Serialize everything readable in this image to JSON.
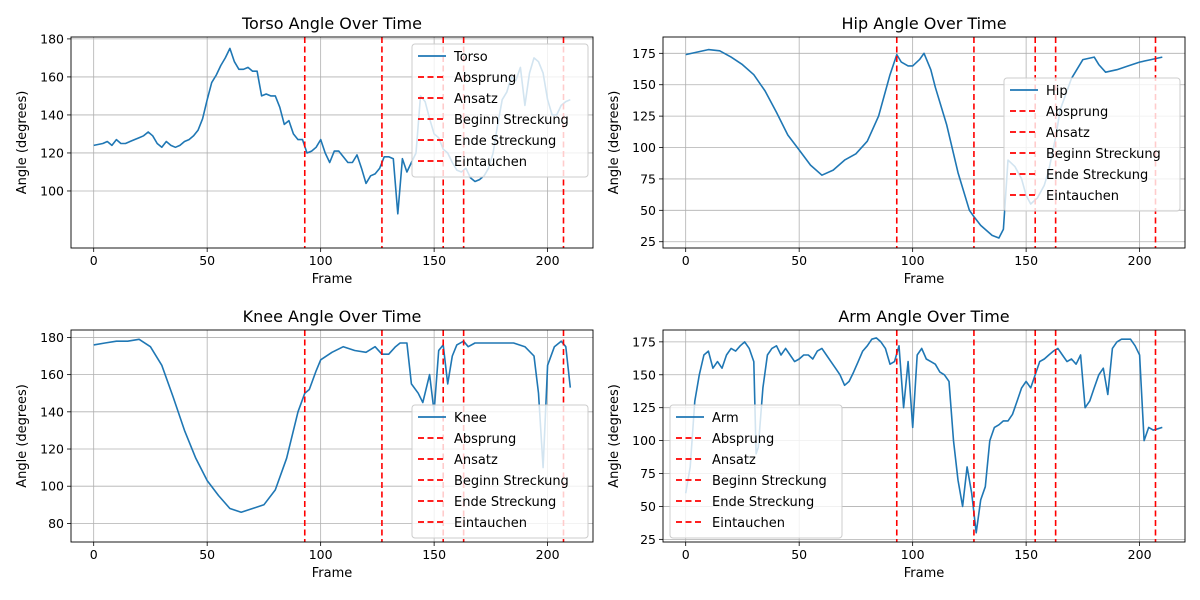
{
  "figure": {
    "background": "#ffffff"
  },
  "colors": {
    "series": "#1f77b4",
    "event": "#ff0000",
    "grid": "#b0b0b0",
    "axis": "#000000"
  },
  "event_names": [
    "Absprung",
    "Ansatz",
    "Beginn Streckung",
    "Ende Streckung",
    "Eintauchen"
  ],
  "event_frames": [
    93,
    127,
    154,
    163,
    207
  ],
  "chart_data": [
    {
      "type": "line",
      "title": "Torso Angle Over Time",
      "xlabel": "Frame",
      "ylabel": "Angle (degrees)",
      "xlim": [
        -10,
        220
      ],
      "ylim": [
        70,
        181
      ],
      "xticks": [
        0,
        50,
        100,
        150,
        200
      ],
      "yticks": [
        100,
        120,
        140,
        160,
        180
      ],
      "grid": true,
      "legend_position": "top-right",
      "series": [
        {
          "name": "Torso",
          "x": [
            0,
            4,
            6,
            8,
            10,
            12,
            14,
            16,
            18,
            20,
            22,
            24,
            26,
            28,
            30,
            32,
            34,
            36,
            38,
            40,
            42,
            44,
            46,
            48,
            50,
            52,
            54,
            56,
            58,
            60,
            62,
            64,
            66,
            68,
            70,
            72,
            74,
            76,
            78,
            80,
            82,
            84,
            86,
            88,
            90,
            92,
            94,
            96,
            98,
            100,
            102,
            104,
            106,
            108,
            110,
            112,
            114,
            116,
            118,
            120,
            122,
            124,
            126,
            128,
            130,
            132,
            134,
            136,
            138,
            140,
            142,
            144,
            146,
            148,
            150,
            152,
            154,
            156,
            158,
            160,
            162,
            164,
            166,
            168,
            170,
            172,
            174,
            176,
            178,
            180,
            182,
            184,
            186,
            188,
            190,
            192,
            194,
            196,
            198,
            200,
            202,
            204,
            206,
            208,
            210
          ],
          "values": [
            124,
            125,
            126,
            124,
            127,
            125,
            125,
            126,
            127,
            128,
            129,
            131,
            129,
            125,
            123,
            126,
            124,
            123,
            124,
            126,
            127,
            129,
            132,
            138,
            148,
            157,
            161,
            166,
            170,
            175,
            168,
            164,
            164,
            165,
            163,
            163,
            150,
            151,
            150,
            150,
            144,
            135,
            137,
            130,
            127,
            127,
            120,
            121,
            123,
            127,
            120,
            115,
            121,
            121,
            118,
            115,
            115,
            119,
            112,
            104,
            108,
            109,
            112,
            118,
            118,
            117,
            88,
            117,
            110,
            115,
            120,
            150,
            147,
            138,
            130,
            128,
            122,
            120,
            115,
            111,
            110,
            112,
            107,
            105,
            106,
            108,
            112,
            120,
            135,
            148,
            152,
            160,
            158,
            165,
            145,
            162,
            170,
            168,
            162,
            148,
            140,
            140,
            145,
            147,
            148
          ]
        }
      ]
    },
    {
      "type": "line",
      "title": "Hip Angle Over Time",
      "xlabel": "Frame",
      "ylabel": "Angle (degrees)",
      "xlim": [
        -10,
        220
      ],
      "ylim": [
        20,
        188
      ],
      "xticks": [
        0,
        50,
        100,
        150,
        200
      ],
      "yticks": [
        25,
        50,
        75,
        100,
        125,
        150,
        175
      ],
      "grid": true,
      "legend_position": "center-right",
      "series": [
        {
          "name": "Hip",
          "x": [
            0,
            5,
            10,
            15,
            20,
            25,
            30,
            35,
            40,
            45,
            50,
            55,
            60,
            65,
            70,
            75,
            80,
            85,
            90,
            93,
            95,
            98,
            100,
            103,
            105,
            108,
            110,
            115,
            120,
            125,
            127,
            130,
            135,
            138,
            140,
            142,
            145,
            148,
            150,
            152,
            155,
            158,
            160,
            163,
            165,
            170,
            175,
            180,
            182,
            185,
            190,
            195,
            200,
            205,
            210
          ],
          "values": [
            174,
            176,
            178,
            177,
            172,
            166,
            158,
            145,
            128,
            110,
            98,
            86,
            78,
            82,
            90,
            95,
            105,
            125,
            158,
            174,
            168,
            165,
            165,
            170,
            175,
            162,
            148,
            118,
            80,
            50,
            45,
            38,
            30,
            28,
            35,
            90,
            85,
            75,
            62,
            55,
            60,
            70,
            82,
            108,
            130,
            155,
            170,
            172,
            166,
            160,
            162,
            165,
            168,
            170,
            172
          ]
        }
      ]
    },
    {
      "type": "line",
      "title": "Knee Angle Over Time",
      "xlabel": "Frame",
      "ylabel": "Angle (degrees)",
      "xlim": [
        -10,
        220
      ],
      "ylim": [
        70,
        184
      ],
      "xticks": [
        0,
        50,
        100,
        150,
        200
      ],
      "yticks": [
        80,
        100,
        120,
        140,
        160,
        180
      ],
      "grid": true,
      "legend_position": "bottom-right",
      "series": [
        {
          "name": "Knee",
          "x": [
            0,
            5,
            10,
            15,
            20,
            25,
            30,
            35,
            40,
            45,
            50,
            55,
            60,
            65,
            70,
            75,
            80,
            85,
            90,
            93,
            95,
            98,
            100,
            105,
            110,
            115,
            120,
            124,
            127,
            130,
            133,
            135,
            138,
            140,
            143,
            145,
            148,
            150,
            152,
            154,
            156,
            158,
            160,
            163,
            165,
            168,
            170,
            175,
            180,
            185,
            190,
            194,
            196,
            198,
            200,
            203,
            206,
            208,
            210
          ],
          "values": [
            176,
            177,
            178,
            178,
            179,
            175,
            165,
            148,
            130,
            115,
            103,
            95,
            88,
            86,
            88,
            90,
            98,
            115,
            140,
            150,
            152,
            162,
            168,
            172,
            175,
            173,
            172,
            175,
            171,
            171,
            175,
            177,
            177,
            155,
            150,
            145,
            160,
            140,
            173,
            176,
            155,
            170,
            176,
            178,
            175,
            177,
            177,
            177,
            177,
            177,
            175,
            170,
            150,
            110,
            165,
            175,
            178,
            175,
            153
          ]
        }
      ]
    },
    {
      "type": "line",
      "title": "Arm Angle Over Time",
      "xlabel": "Frame",
      "ylabel": "Angle (degrees)",
      "xlim": [
        -10,
        220
      ],
      "ylim": [
        23,
        184
      ],
      "xticks": [
        0,
        50,
        100,
        150,
        200
      ],
      "yticks": [
        25,
        50,
        75,
        100,
        125,
        150,
        175
      ],
      "grid": true,
      "legend_position": "bottom-left",
      "series": [
        {
          "name": "Arm",
          "x": [
            0,
            2,
            4,
            6,
            8,
            10,
            12,
            14,
            16,
            18,
            20,
            22,
            24,
            26,
            28,
            30,
            31,
            32,
            34,
            36,
            38,
            40,
            42,
            44,
            46,
            48,
            50,
            52,
            54,
            56,
            58,
            60,
            62,
            64,
            66,
            68,
            70,
            72,
            74,
            76,
            78,
            80,
            82,
            84,
            86,
            88,
            90,
            92,
            94,
            96,
            98,
            100,
            102,
            104,
            106,
            108,
            110,
            112,
            114,
            116,
            118,
            120,
            122,
            124,
            126,
            128,
            130,
            132,
            134,
            136,
            138,
            140,
            142,
            144,
            146,
            148,
            150,
            152,
            154,
            156,
            158,
            160,
            162,
            164,
            166,
            168,
            170,
            172,
            174,
            176,
            178,
            180,
            182,
            184,
            186,
            188,
            190,
            192,
            194,
            196,
            198,
            200,
            202,
            204,
            206,
            208,
            210
          ],
          "values": [
            60,
            80,
            130,
            150,
            165,
            168,
            155,
            160,
            155,
            165,
            170,
            168,
            172,
            175,
            170,
            160,
            90,
            95,
            140,
            165,
            170,
            172,
            165,
            170,
            165,
            160,
            162,
            165,
            165,
            162,
            168,
            170,
            165,
            160,
            155,
            150,
            142,
            145,
            152,
            160,
            168,
            172,
            177,
            178,
            175,
            170,
            158,
            160,
            172,
            125,
            160,
            110,
            165,
            170,
            162,
            160,
            158,
            152,
            150,
            145,
            100,
            70,
            50,
            80,
            60,
            30,
            55,
            65,
            100,
            110,
            112,
            115,
            115,
            120,
            130,
            140,
            145,
            140,
            150,
            160,
            162,
            165,
            168,
            170,
            165,
            160,
            162,
            158,
            165,
            125,
            130,
            140,
            150,
            155,
            135,
            170,
            175,
            177,
            177,
            177,
            172,
            165,
            100,
            110,
            108,
            109,
            110
          ]
        }
      ]
    }
  ]
}
